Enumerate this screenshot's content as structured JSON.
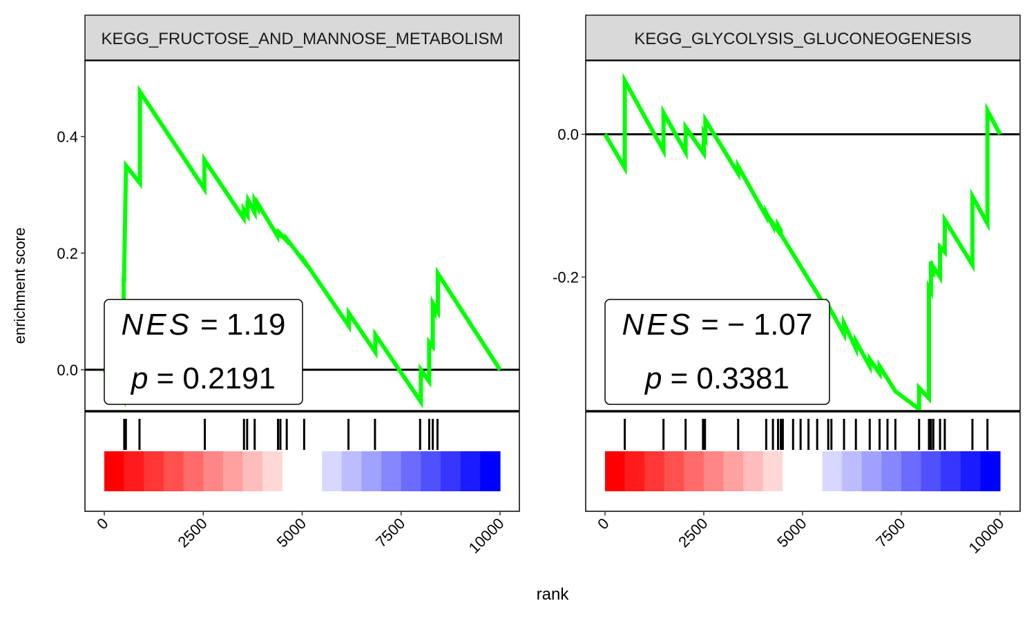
{
  "figure": {
    "xlabel": "rank"
  },
  "chart_data": [
    {
      "type": "line",
      "title": "KEGG_FRUCTOSE_AND_MANNOSE_METABOLISM",
      "xlabel": "rank",
      "ylabel": "enrichment score",
      "xlim": [
        0,
        10000
      ],
      "ylim": [
        -0.07,
        0.53
      ],
      "xticks": [
        0,
        2500,
        5000,
        7500,
        10000
      ],
      "xtick_labels": [
        "0",
        "2500",
        "5000",
        "7500",
        "10000"
      ],
      "yticks": [
        0.0,
        0.2,
        0.4
      ],
      "ytick_labels": [
        "0.0",
        "0.2",
        "0.4"
      ],
      "series": [
        {
          "color": "#00ff00",
          "x": [
            0,
            490,
            490,
            500,
            500,
            550,
            900,
            900,
            2530,
            2530,
            3520,
            3520,
            3620,
            3620,
            3640,
            3640,
            3800,
            3800,
            3880,
            3880,
            4370,
            4370,
            4420,
            4420,
            4600,
            4600,
            5050,
            5050,
            6180,
            6180,
            6850,
            6850,
            8000,
            8000,
            8210,
            8210,
            8300,
            8300,
            8340,
            8340,
            8430,
            8430,
            10000
          ],
          "y": [
            0.0,
            -0.052,
            0.155,
            0.155,
            0.163,
            0.35,
            0.32,
            0.477,
            0.31,
            0.36,
            0.26,
            0.275,
            0.265,
            0.29,
            0.278,
            0.29,
            0.27,
            0.29,
            0.279,
            0.285,
            0.23,
            0.235,
            0.232,
            0.235,
            0.222,
            0.225,
            0.185,
            0.187,
            0.075,
            0.097,
            0.03,
            0.06,
            -0.055,
            0.0,
            -0.02,
            0.047,
            0.04,
            0.11,
            0.103,
            0.11,
            0.1,
            0.165,
            0.0
          ]
        }
      ],
      "hits": [
        505,
        520,
        545,
        890,
        2540,
        3530,
        3610,
        3800,
        4390,
        4450,
        4610,
        5050,
        6170,
        6840,
        7980,
        8210,
        8300,
        8420
      ],
      "gradient": {
        "x_start": 0,
        "x_end": 10000,
        "colors": [
          "#ff0000",
          "#ff1b1b",
          "#ff3636",
          "#ff5050",
          "#ff6b6b",
          "#ff8686",
          "#ffa1a1",
          "#ffbcbc",
          "#ffd7d7",
          "#ffffff",
          "#ffffff",
          "#d7d7ff",
          "#bcbcff",
          "#a1a1ff",
          "#8686ff",
          "#6b6bff",
          "#5050ff",
          "#3636ff",
          "#1b1bff",
          "#0000ff"
        ]
      },
      "annotation": {
        "nes_label": "NES",
        "nes_value": "= 1.19",
        "p_label": "p",
        "p_value": "= 0.2191"
      }
    },
    {
      "type": "line",
      "title": "KEGG_GLYCOLYSIS_GLUCONEOGENESIS",
      "xlabel": "rank",
      "ylabel": "",
      "xlim": [
        0,
        10000
      ],
      "ylim": [
        -0.387,
        0.103
      ],
      "xticks": [
        0,
        2500,
        5000,
        7500,
        10000
      ],
      "xtick_labels": [
        "0",
        "2500",
        "5000",
        "7500",
        "10000"
      ],
      "yticks": [
        -0.2,
        0.0
      ],
      "ytick_labels": [
        "-0.2",
        "0.0"
      ],
      "series": [
        {
          "color": "#00ff00",
          "x": [
            0,
            500,
            500,
            1480,
            1480,
            2040,
            2040,
            2500,
            2500,
            2540,
            2540,
            3370,
            3370,
            4080,
            4080,
            4250,
            4250,
            4380,
            4380,
            4450,
            4450,
            5650,
            5650,
            6050,
            6050,
            6350,
            6350,
            6700,
            6700,
            6950,
            6950,
            7350,
            7350,
            7950,
            7950,
            8200,
            8200,
            8250,
            8250,
            8300,
            8300,
            8480,
            8480,
            8600,
            8600,
            9300,
            9300,
            9680,
            9680,
            10000
          ],
          "y": [
            0.0,
            -0.047,
            0.075,
            -0.023,
            0.03,
            -0.025,
            0.01,
            -0.027,
            0.0,
            -0.005,
            0.02,
            -0.055,
            -0.045,
            -0.115,
            -0.11,
            -0.128,
            -0.125,
            -0.135,
            -0.128,
            -0.135,
            -0.14,
            -0.248,
            -0.24,
            -0.28,
            -0.265,
            -0.3,
            -0.29,
            -0.325,
            -0.315,
            -0.335,
            -0.325,
            -0.36,
            -0.36,
            -0.385,
            -0.355,
            -0.37,
            -0.215,
            -0.22,
            -0.178,
            -0.2,
            -0.185,
            -0.2,
            -0.158,
            -0.165,
            -0.12,
            -0.183,
            -0.087,
            -0.125,
            0.033,
            0.0
          ]
        }
      ],
      "hits": [
        500,
        1480,
        2040,
        2480,
        2530,
        3370,
        4080,
        4250,
        4380,
        4450,
        4500,
        4760,
        4950,
        5150,
        5370,
        5650,
        5730,
        6050,
        6350,
        6700,
        6950,
        7150,
        7350,
        7950,
        8200,
        8250,
        8310,
        8480,
        8600,
        9300,
        9680
      ],
      "gradient": {
        "x_start": 0,
        "x_end": 10000,
        "colors": [
          "#ff0000",
          "#ff1b1b",
          "#ff3636",
          "#ff5050",
          "#ff6b6b",
          "#ff8686",
          "#ffa1a1",
          "#ffbcbc",
          "#ffd7d7",
          "#ffffff",
          "#ffffff",
          "#d7d7ff",
          "#bcbcff",
          "#a1a1ff",
          "#8686ff",
          "#6b6bff",
          "#5050ff",
          "#3636ff",
          "#1b1bff",
          "#0000ff"
        ]
      },
      "annotation": {
        "nes_label": "NES",
        "nes_value": "= − 1.07",
        "p_label": "p",
        "p_value": "= 0.3381"
      }
    }
  ]
}
